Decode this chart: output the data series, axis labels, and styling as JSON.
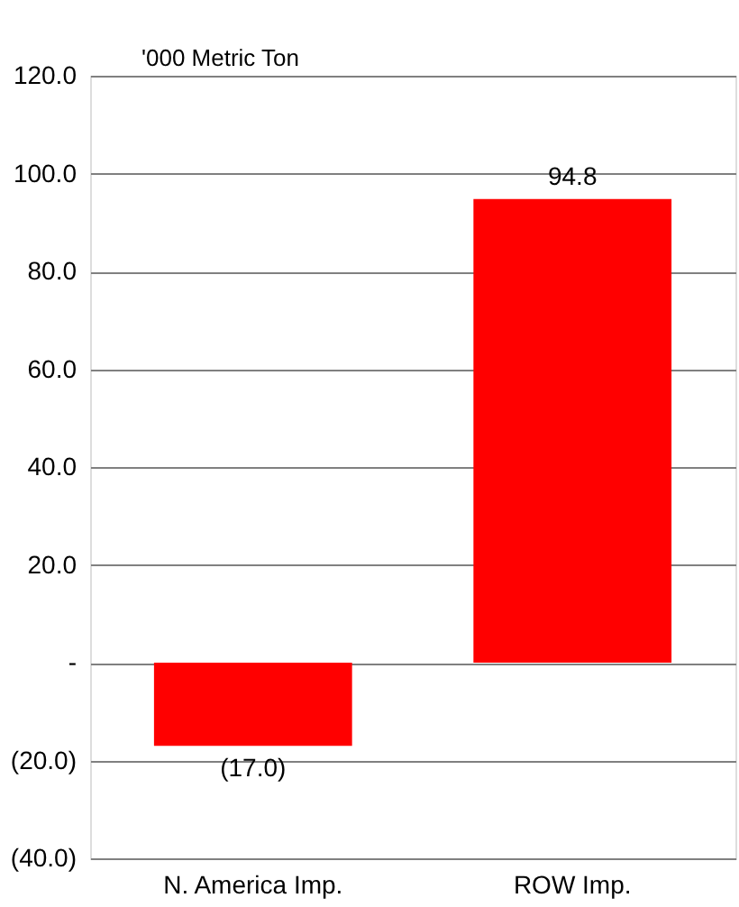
{
  "chart_data": {
    "type": "bar",
    "ylabel": "'000 Metric Ton",
    "categories": [
      "N. America Imp.",
      "ROW Imp."
    ],
    "values": [
      -17.0,
      94.8
    ],
    "color": "#ff0000",
    "value_labels": [
      "(17.0)",
      "94.8"
    ],
    "ylim": [
      -40,
      120
    ],
    "yticks": [
      {
        "value": -40,
        "label": "(40.0)"
      },
      {
        "value": -20,
        "label": "(20.0)"
      },
      {
        "value": 0,
        "label": "-"
      },
      {
        "value": 20,
        "label": "20.0"
      },
      {
        "value": 40,
        "label": "40.0"
      },
      {
        "value": 60,
        "label": "60.0"
      },
      {
        "value": 80,
        "label": "80.0"
      },
      {
        "value": 100,
        "label": "100.0"
      },
      {
        "value": 120,
        "label": "120.0"
      }
    ],
    "grid": "y"
  }
}
